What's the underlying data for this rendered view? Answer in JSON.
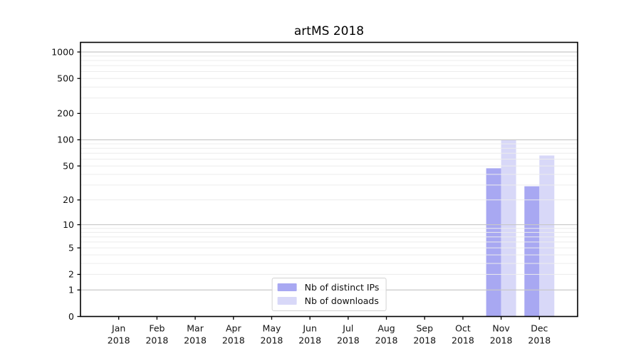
{
  "chart_data": {
    "type": "bar",
    "title": "artMS 2018",
    "x_categories_line1": [
      "Jan",
      "Feb",
      "Mar",
      "Apr",
      "May",
      "Jun",
      "Jul",
      "Aug",
      "Sep",
      "Oct",
      "Nov",
      "Dec"
    ],
    "x_year_line2": "2018",
    "series": [
      {
        "name": "Nb of distinct IPs",
        "color": "#a8a8f2",
        "values": [
          0,
          0,
          0,
          0,
          0,
          0,
          0,
          0,
          0,
          0,
          47,
          29
        ]
      },
      {
        "name": "Nb of downloads",
        "color": "#d8d8f8",
        "values": [
          0,
          0,
          0,
          0,
          0,
          0,
          0,
          0,
          0,
          0,
          100,
          66
        ]
      }
    ],
    "yscale": "log1p",
    "ylim": [
      0,
      1286
    ],
    "ytick_labels": [
      0,
      1,
      2,
      5,
      10,
      20,
      50,
      100,
      200,
      500,
      1000
    ],
    "major_gridlines": [
      1,
      10,
      100,
      1000
    ],
    "minor_gridlines_per_decade": [
      2,
      3,
      4,
      5,
      6,
      7,
      8,
      9
    ],
    "grid": true,
    "legend_position": "lower center",
    "xlabel": "",
    "ylabel": ""
  },
  "colors": {
    "bar_distinct_ips": "#a8a8f2",
    "bar_downloads": "#d8d8f8",
    "major_grid": "#c8c8c8",
    "minor_grid": "#ececec",
    "spine": "#000000",
    "legend_border": "#d2d2d2"
  }
}
